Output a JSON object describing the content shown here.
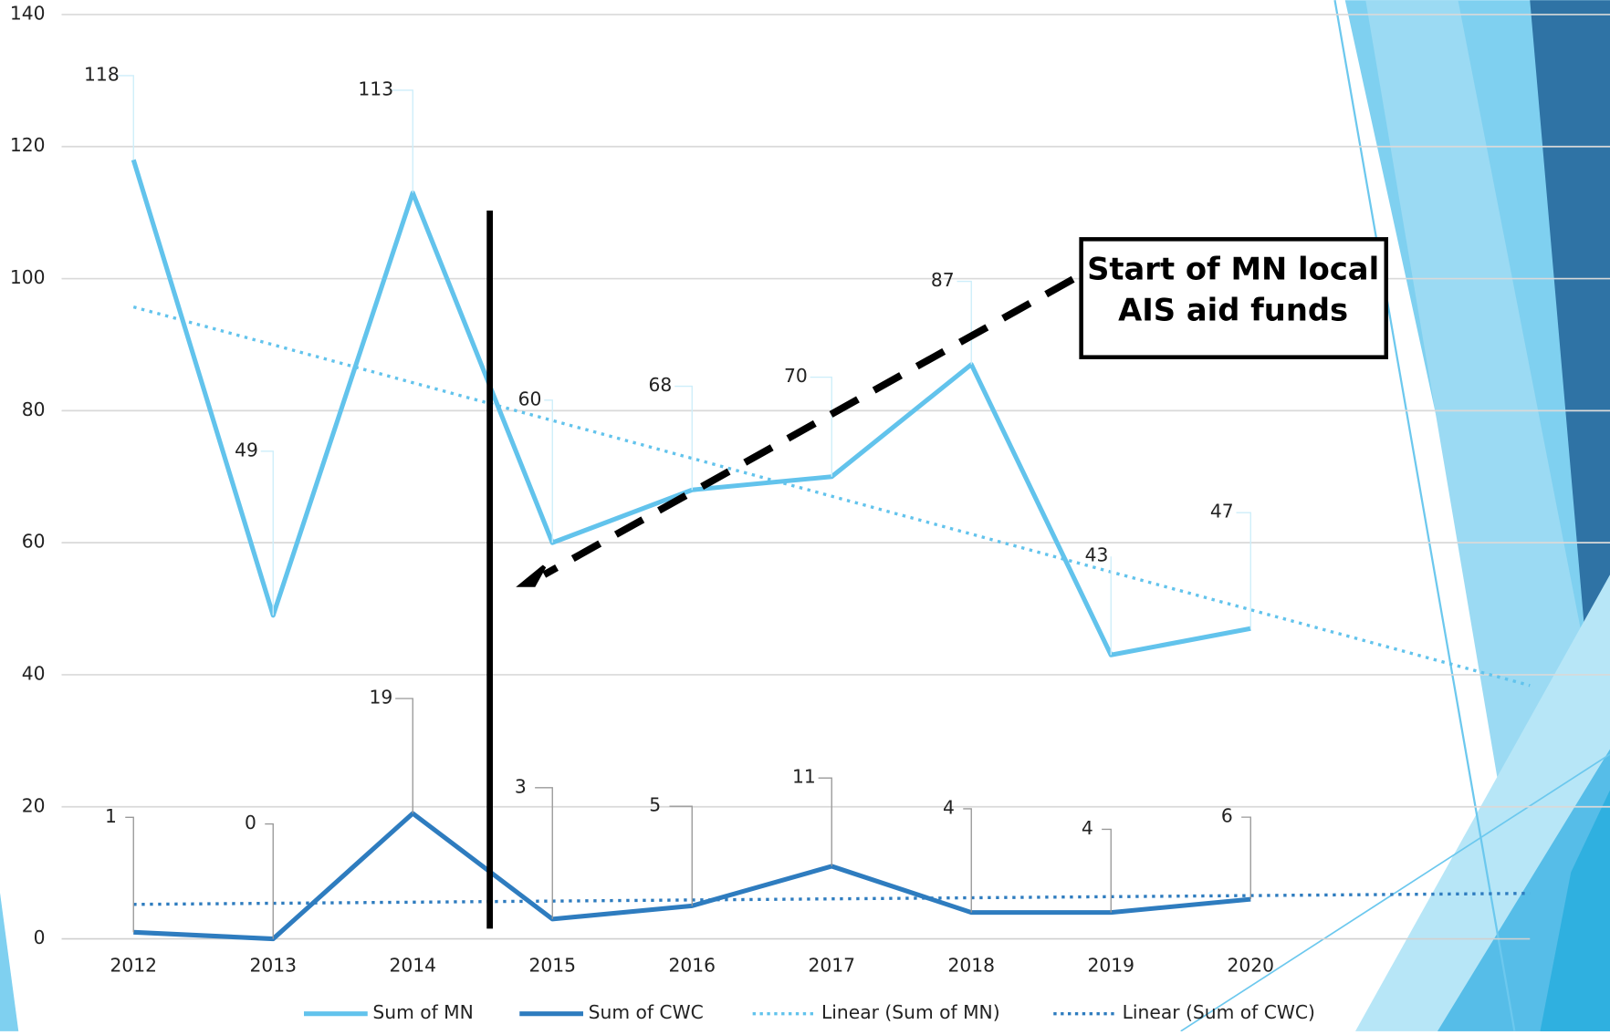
{
  "chart_data": {
    "type": "line",
    "categories": [
      "2012",
      "2013",
      "2014",
      "2015",
      "2016",
      "2017",
      "2018",
      "2019",
      "2020"
    ],
    "series": [
      {
        "name": "Sum of MN",
        "color": "#62c3ec",
        "values": [
          118,
          49,
          113,
          60,
          68,
          70,
          87,
          43,
          47
        ]
      },
      {
        "name": "Sum of CWC",
        "color": "#2e7cbf",
        "values": [
          1,
          0,
          19,
          3,
          5,
          11,
          4,
          4,
          6
        ]
      }
    ],
    "trendlines": [
      {
        "name": "Linear (Sum of MN)",
        "series": 0,
        "type": "linear",
        "forward": 2
      },
      {
        "name": "Linear (Sum of CWC)",
        "series": 1,
        "type": "linear",
        "forward": 2
      }
    ],
    "annotation": [
      "Start of MN local",
      "AIS aid funds"
    ],
    "ylim": [
      0,
      140
    ],
    "yticks": [
      0,
      20,
      40,
      60,
      80,
      100,
      120,
      140
    ],
    "grid": true,
    "legend": "bottom"
  }
}
